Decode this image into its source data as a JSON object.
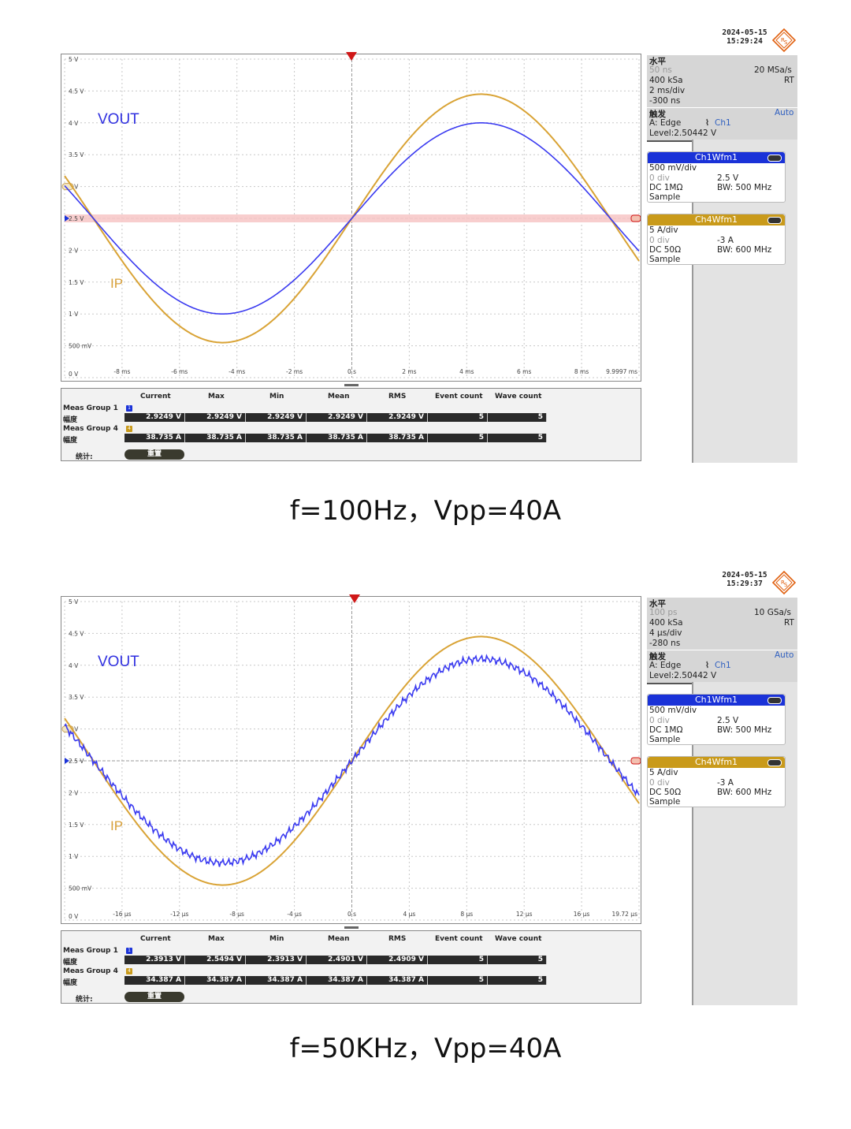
{
  "captures": [
    {
      "stamp": {
        "date": "2024-05-15",
        "time": "15:29:24"
      },
      "labels": {
        "vout": "VOUT",
        "ip": "IP"
      },
      "horizontal": {
        "title": "水平",
        "resolution": "50 ns",
        "sample_rate": "20 MSa/s",
        "record": "400 kSa",
        "mode": "RT",
        "scale": "2 ms/div",
        "position": "-300 ns"
      },
      "trigger": {
        "title": "触发",
        "mode": "Auto",
        "source_line": "A:   Edge",
        "source": "Ch1",
        "level": "Level:2.50442 V"
      },
      "ch1": {
        "title": "Ch1Wfm1",
        "scale": "500 mV/div",
        "offset": "0 div",
        "position": "2.5 V",
        "coupling": "DC 1MΩ",
        "bw": "BW: 500 MHz",
        "acq": "Sample"
      },
      "ch4": {
        "title": "Ch4Wfm1",
        "scale": "5 A/div",
        "offset": "0 div",
        "position": "-3 A",
        "coupling": "DC 50Ω",
        "bw": "BW: 600 MHz",
        "acq": "Sample"
      },
      "y_ticks": [
        "5 V",
        "4.5 V",
        "4 V",
        "3.5 V",
        "3 V",
        "2.5 V",
        "2 V",
        "1.5 V",
        "1 V",
        "500 mV",
        "0 V"
      ],
      "x_ticks": [
        "-8 ms",
        "-6 ms",
        "-4 ms",
        "-2 ms",
        "0 s",
        "2 ms",
        "4 ms",
        "6 ms",
        "8 ms",
        "9.9997 ms"
      ],
      "meas": {
        "headers": [
          "Current",
          "Max",
          "Min",
          "Mean",
          "RMS",
          "Event count",
          "Wave count"
        ],
        "group1": "Meas Group 1",
        "group4": "Meas Group 4",
        "row_label": "幅度",
        "row1": [
          "2.9249 V",
          "2.9249 V",
          "2.9249 V",
          "2.9249 V",
          "2.9249 V",
          "5",
          "5"
        ],
        "row4": [
          "38.735 A",
          "38.735 A",
          "38.735 A",
          "38.735 A",
          "38.735 A",
          "5",
          "5"
        ],
        "stat_label": "统计:",
        "reset_label": "重置"
      },
      "caption": "f=100Hz，Vpp=40A"
    },
    {
      "stamp": {
        "date": "2024-05-15",
        "time": "15:29:37"
      },
      "labels": {
        "vout": "VOUT",
        "ip": "IP"
      },
      "horizontal": {
        "title": "水平",
        "resolution": "100 ps",
        "sample_rate": "10 GSa/s",
        "record": "400 kSa",
        "mode": "RT",
        "scale": "4 µs/div",
        "position": "-280 ns"
      },
      "trigger": {
        "title": "触发",
        "mode": "Auto",
        "source_line": "A:   Edge",
        "source": "Ch1",
        "level": "Level:2.50442 V"
      },
      "ch1": {
        "title": "Ch1Wfm1",
        "scale": "500 mV/div",
        "offset": "0 div",
        "position": "2.5 V",
        "coupling": "DC 1MΩ",
        "bw": "BW: 500 MHz",
        "acq": "Sample"
      },
      "ch4": {
        "title": "Ch4Wfm1",
        "scale": "5 A/div",
        "offset": "0 div",
        "position": "-3 A",
        "coupling": "DC 50Ω",
        "bw": "BW: 600 MHz",
        "acq": "Sample"
      },
      "y_ticks": [
        "5 V",
        "4.5 V",
        "4 V",
        "3.5 V",
        "3 V",
        "2.5 V",
        "2 V",
        "1.5 V",
        "1 V",
        "500 mV",
        "0 V"
      ],
      "x_ticks": [
        "-16 µs",
        "-12 µs",
        "-8 µs",
        "-4 µs",
        "0 s",
        "4 µs",
        "8 µs",
        "12 µs",
        "16 µs",
        "19.72 µs"
      ],
      "meas": {
        "headers": [
          "Current",
          "Max",
          "Min",
          "Mean",
          "RMS",
          "Event count",
          "Wave count"
        ],
        "group1": "Meas Group 1",
        "group4": "Meas Group 4",
        "row_label": "幅度",
        "row1": [
          "2.3913 V",
          "2.5494 V",
          "2.3913 V",
          "2.4901 V",
          "2.4909 V",
          "5",
          "5"
        ],
        "row4": [
          "34.387 A",
          "34.387 A",
          "34.387 A",
          "34.387 A",
          "34.387 A",
          "5",
          "5"
        ],
        "stat_label": "统计:",
        "reset_label": "重置"
      },
      "caption": "f=50KHz，Vpp=40A"
    }
  ],
  "colors": {
    "ch1": "#3a3af0",
    "ch4": "#d9a335",
    "ch1_header": "#1a32d8",
    "ch4_header": "#c99a1a",
    "trigger": "#d01818"
  }
}
